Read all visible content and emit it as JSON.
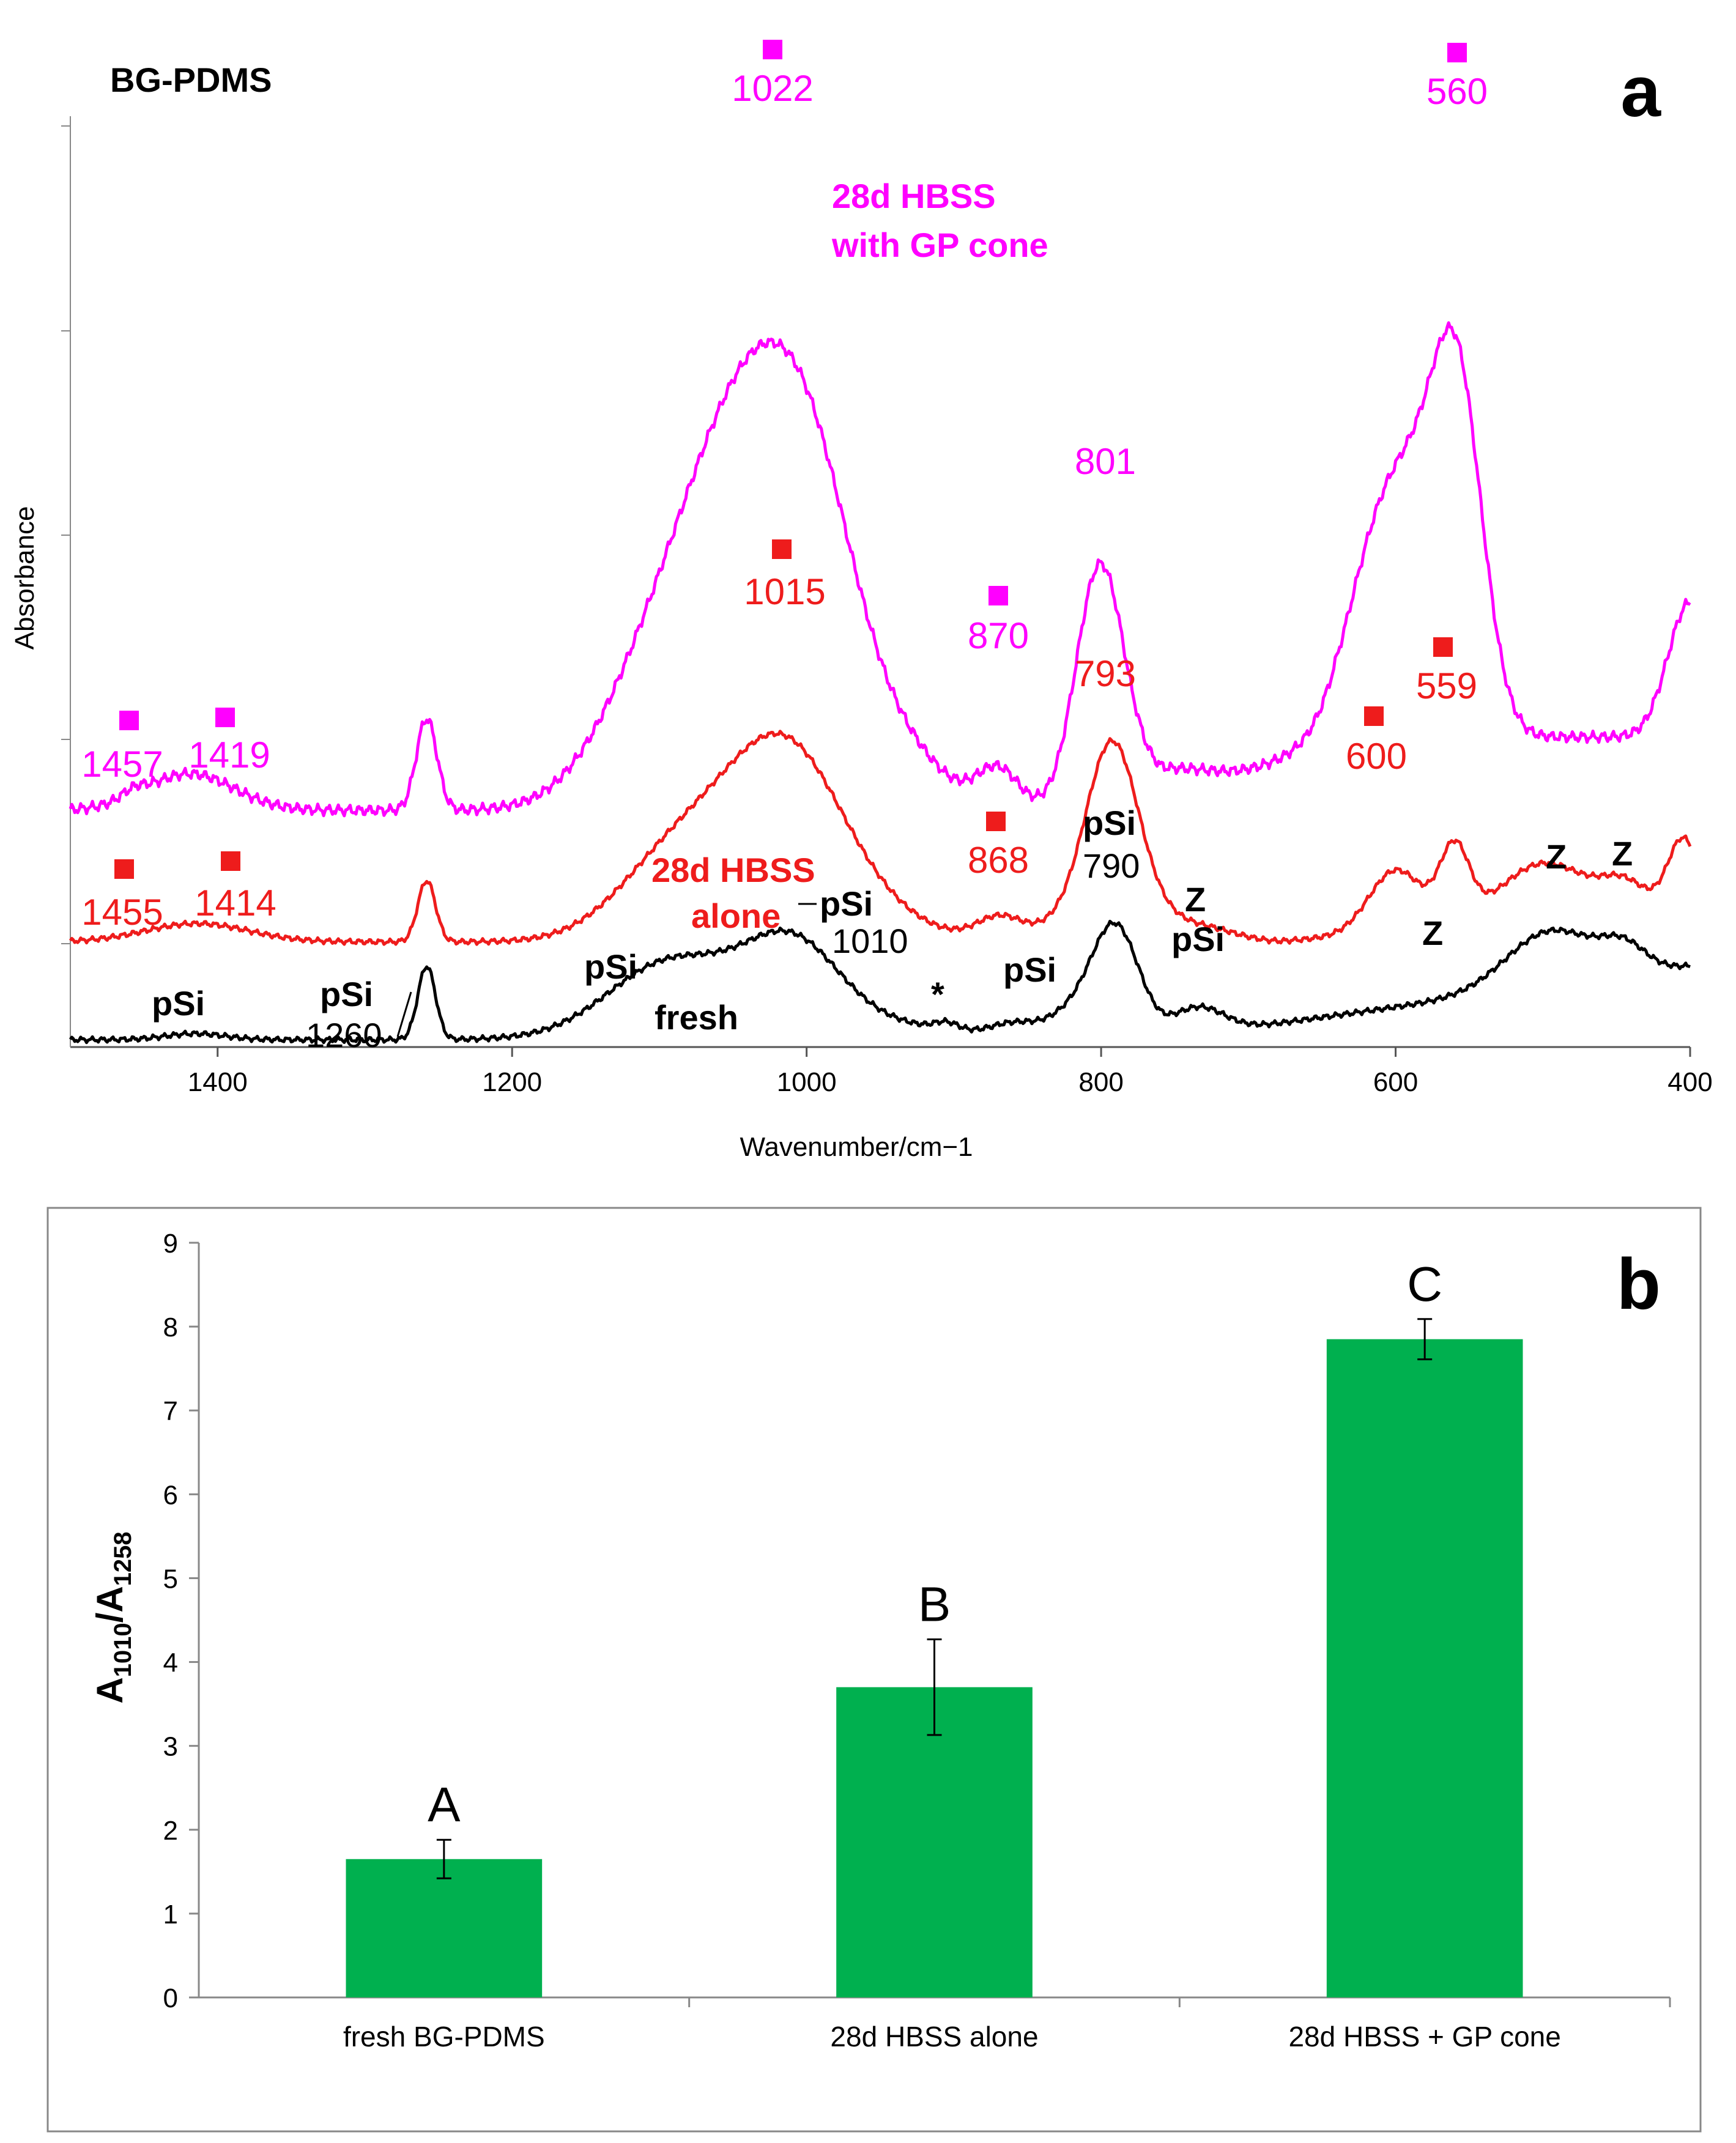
{
  "chart_data": [
    {
      "type": "line",
      "panel_label": "a",
      "title": "BG-PDMS",
      "xlabel": "Wavenumber/cm−1",
      "ylabel": "Absorbance",
      "xlim": [
        1500,
        400
      ],
      "x_ticks": [
        {
          "value": 1400,
          "label": "1400"
        },
        {
          "value": 1200,
          "label": "1200"
        },
        {
          "value": 1000,
          "label": "1000"
        },
        {
          "value": 800,
          "label": "800"
        },
        {
          "value": 600,
          "label": "600"
        },
        {
          "value": 400,
          "label": "400"
        }
      ],
      "colors": {
        "fresh": "#000000",
        "alone": "#ee1c1c",
        "gp": "#ff00ff"
      },
      "series": [
        {
          "key": "gp",
          "name": "28d HBSS with GP cone",
          "label_line1": "28d HBSS",
          "label_line2": "with GP cone",
          "color": "#ff00ff"
        },
        {
          "key": "alone",
          "name": "28d HBSS alone",
          "label_line1": "28d HBSS",
          "label_line2": "alone",
          "color": "#ee1c1c"
        },
        {
          "key": "fresh",
          "name": "fresh",
          "label_line1": "fresh",
          "color": "#000000"
        }
      ],
      "peaks_gp": [
        {
          "label": "1022",
          "wn": 1022
        },
        {
          "label": "560",
          "wn": 560
        },
        {
          "label": "801",
          "wn": 801
        },
        {
          "label": "870",
          "wn": 870
        },
        {
          "label": "1457",
          "wn": 1457
        },
        {
          "label": "1419",
          "wn": 1419
        }
      ],
      "peaks_alone": [
        {
          "label": "1015",
          "wn": 1015
        },
        {
          "label": "793",
          "wn": 793
        },
        {
          "label": "559",
          "wn": 559
        },
        {
          "label": "600",
          "wn": 600
        },
        {
          "label": "868",
          "wn": 868
        },
        {
          "label": "1455",
          "wn": 1455
        },
        {
          "label": "1414",
          "wn": 1414
        }
      ],
      "fresh_annotations": {
        "psi": "pSi",
        "z": "Z",
        "star": "*",
        "n1260": "1260",
        "n1010": "1010",
        "n790": "790"
      }
    },
    {
      "type": "bar",
      "panel_label": "b",
      "ylabel_main": "A",
      "ylabel_sub1": "1010",
      "ylabel_slash": "/A",
      "ylabel_sub2": "1258",
      "ylim": [
        0,
        9
      ],
      "y_ticks": [
        "0",
        "1",
        "2",
        "3",
        "4",
        "5",
        "6",
        "7",
        "8",
        "9"
      ],
      "categories": [
        "fresh BG-PDMS",
        "28d HBSS alone",
        "28d HBSS + GP cone"
      ],
      "values": [
        1.65,
        3.7,
        7.85
      ],
      "errors": [
        0.23,
        0.57,
        0.24
      ],
      "significance": [
        "A",
        "B",
        "C"
      ],
      "bar_color": "#00b04f"
    }
  ]
}
